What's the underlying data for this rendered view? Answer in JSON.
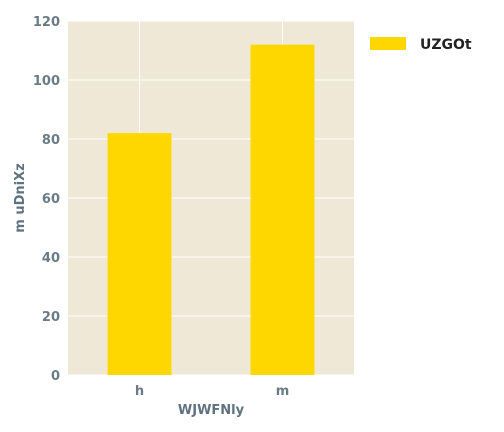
{
  "chart_data": {
    "type": "bar",
    "categories": [
      "h",
      "m"
    ],
    "category_weights": [
      "bold",
      "normal"
    ],
    "series": [
      {
        "name": "UZGOt",
        "values": [
          82,
          112
        ],
        "color": "#ffd700"
      }
    ],
    "xlabel": "WJWFNly",
    "ylabel": "m uDniXz",
    "ylim": [
      0,
      120
    ],
    "yticks": [
      0,
      20,
      40,
      60,
      80,
      100,
      120
    ],
    "grid": true,
    "background": "#efe8d7",
    "grid_color": "#ffffff",
    "legend_position": "top-right"
  }
}
